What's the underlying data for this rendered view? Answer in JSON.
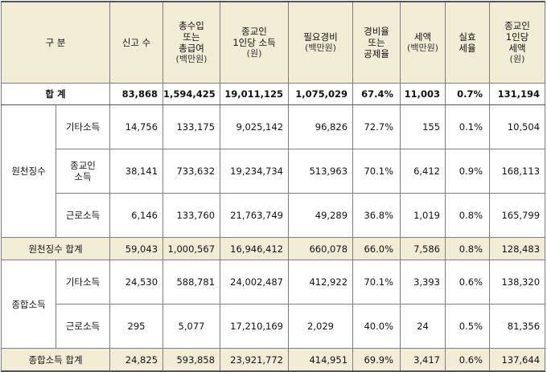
{
  "headers": {
    "category": "구 분",
    "count": "신고 수",
    "income_line1": "총수입",
    "income_line2": "또는",
    "income_line3": "총급여",
    "income_unit": "(백만원)",
    "per_cap_income_line1": "종교인",
    "per_cap_income_line2": "1인당 소득",
    "per_cap_income_unit": "(원)",
    "expense_line1": "필요경비",
    "expense_unit": "(백만원)",
    "expense_rate_line1": "경비율",
    "expense_rate_line2": "또는",
    "expense_rate_line3": "공제율",
    "tax_line1": "세액",
    "tax_unit": "(백만원)",
    "eff_rate_line1": "실효",
    "eff_rate_line2": "세율",
    "per_cap_tax_line1": "종교인",
    "per_cap_tax_line2": "1인당",
    "per_cap_tax_line3": "세액",
    "per_cap_tax_unit": "(원)"
  },
  "total": {
    "label": "합 계",
    "count": "83,868",
    "income": "1,594,425",
    "per_cap_income": "19,011,125",
    "expense": "1,075,029",
    "expense_rate": "67.4%",
    "tax": "11,003",
    "eff_rate": "0.7%",
    "per_cap_tax": "131,194"
  },
  "withholding": {
    "group_label": "원천징수",
    "rows": [
      {
        "label": "기타소득",
        "count": "14,756",
        "income": "133,175",
        "per_cap_income": "9,025,142",
        "expense": "96,826",
        "expense_rate": "72.7%",
        "tax": "155",
        "eff_rate": "0.1%",
        "per_cap_tax": "10,504"
      },
      {
        "label_line1": "종교인",
        "label_line2": "소득",
        "count": "38,141",
        "income": "733,632",
        "per_cap_income": "19,234,734",
        "expense": "513,963",
        "expense_rate": "70.1%",
        "tax": "6,412",
        "eff_rate": "0.9%",
        "per_cap_tax": "168,113"
      },
      {
        "label": "근로소득",
        "count": "6,146",
        "income": "133,760",
        "per_cap_income": "21,763,749",
        "expense": "49,289",
        "expense_rate": "36.8%",
        "tax": "1,019",
        "eff_rate": "0.8%",
        "per_cap_tax": "165,799"
      }
    ],
    "subtotal": {
      "label": "원천징수 합계",
      "count": "59,043",
      "income": "1,000,567",
      "per_cap_income": "16,946,412",
      "expense": "660,078",
      "expense_rate": "66.0%",
      "tax": "7,586",
      "eff_rate": "0.8%",
      "per_cap_tax": "128,483"
    }
  },
  "comprehensive": {
    "group_label": "종합소득",
    "rows": [
      {
        "label": "기타소득",
        "count": "24,530",
        "income": "588,781",
        "per_cap_income": "24,002,487",
        "expense": "412,922",
        "expense_rate": "70.1%",
        "tax": "3,393",
        "eff_rate": "0.6%",
        "per_cap_tax": "138,320"
      },
      {
        "label": "근로소득",
        "count": "295",
        "income": "5,077",
        "per_cap_income": "17,210,169",
        "expense": "2,029",
        "expense_rate": "40.0%",
        "tax": "24",
        "eff_rate": "0.5%",
        "per_cap_tax": "81,356"
      }
    ],
    "subtotal": {
      "label": "종합소득 합계",
      "count": "24,825",
      "income": "593,858",
      "per_cap_income": "23,921,772",
      "expense": "414,951",
      "expense_rate": "69.9%",
      "tax": "3,417",
      "eff_rate": "0.6%",
      "per_cap_tax": "137,644"
    }
  }
}
